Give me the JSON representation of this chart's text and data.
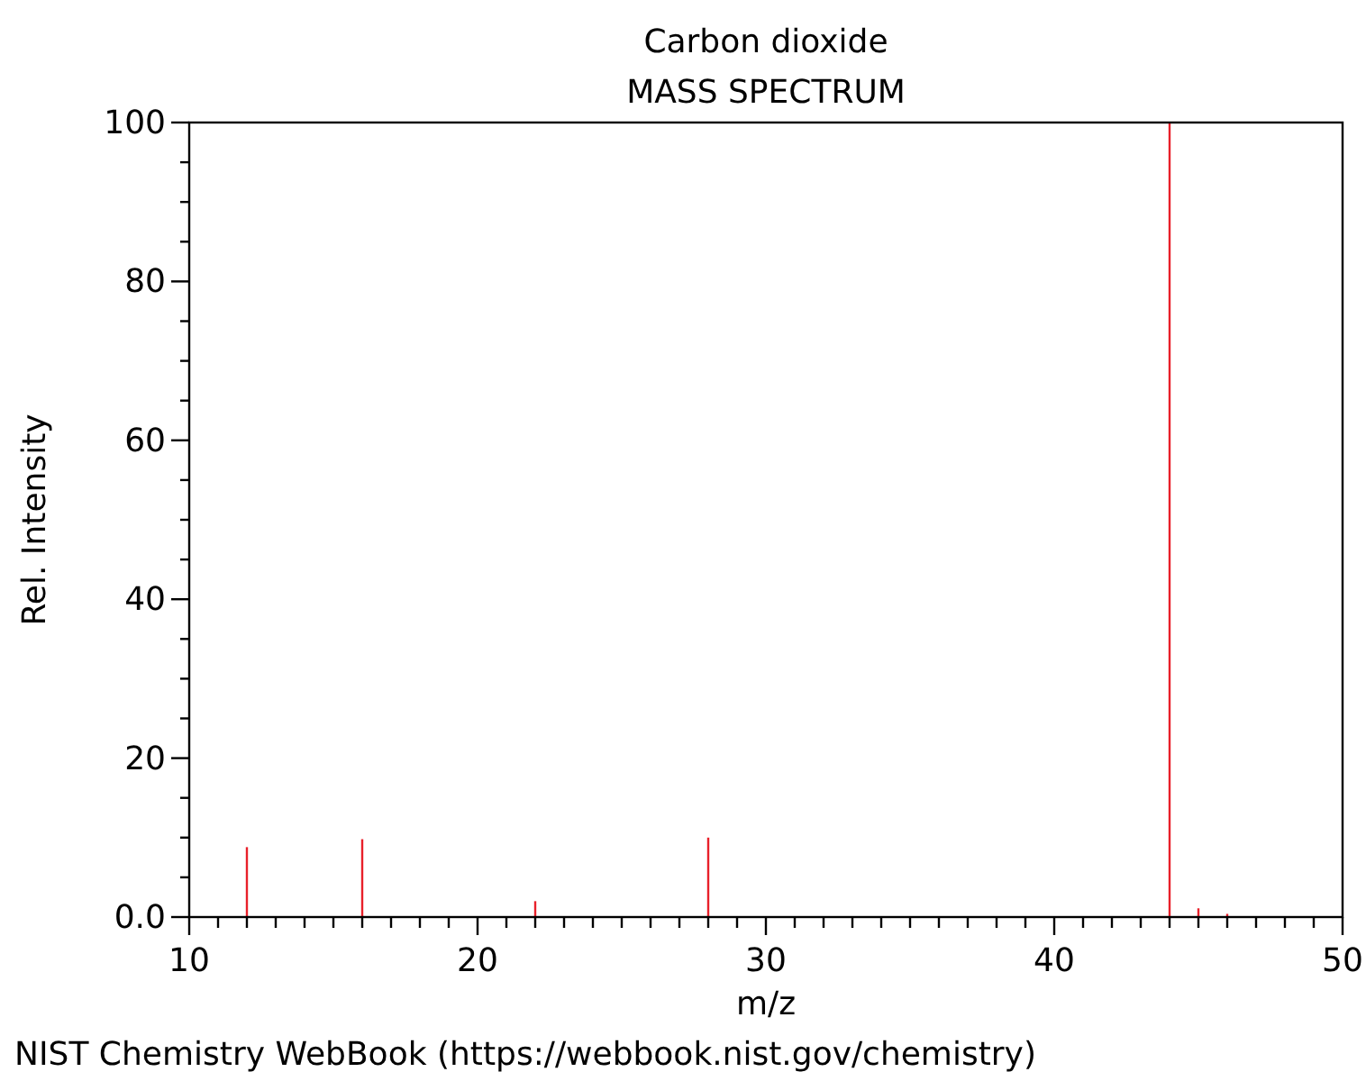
{
  "chart_data": {
    "type": "bar",
    "title": "Carbon dioxide",
    "subtitle": "MASS SPECTRUM",
    "xlabel": "m/z",
    "ylabel": "Rel. Intensity",
    "annotations": [
      "NIST Chemistry WebBook (https://webbook.nist.gov/chemistry)"
    ],
    "x": [
      12,
      16,
      22,
      28,
      44,
      45,
      46
    ],
    "values": [
      8.8,
      9.8,
      2.0,
      10.0,
      100,
      1.1,
      0.4
    ],
    "color": "#e8202a",
    "xlim": [
      10,
      50
    ],
    "xticks": [
      10,
      {
        "value": 11,
        "label": null
      },
      {
        "value": 12,
        "label": null
      },
      {
        "value": 13,
        "label": null
      },
      {
        "value": 14,
        "label": null
      },
      {
        "value": 15,
        "label": null
      },
      {
        "value": 16,
        "label": null
      },
      {
        "value": 17,
        "label": null
      },
      {
        "value": 18,
        "label": null
      },
      {
        "value": 19,
        "label": null
      },
      20,
      {
        "value": 21,
        "label": null
      },
      {
        "value": 22,
        "label": null
      },
      {
        "value": 23,
        "label": null
      },
      {
        "value": 24,
        "label": null
      },
      {
        "value": 25,
        "label": null
      },
      {
        "value": 26,
        "label": null
      },
      {
        "value": 27,
        "label": null
      },
      {
        "value": 28,
        "label": null
      },
      {
        "value": 29,
        "label": null
      },
      30,
      {
        "value": 31,
        "label": null
      },
      {
        "value": 32,
        "label": null
      },
      {
        "value": 33,
        "label": null
      },
      {
        "value": 34,
        "label": null
      },
      {
        "value": 35,
        "label": null
      },
      {
        "value": 36,
        "label": null
      },
      {
        "value": 37,
        "label": null
      },
      {
        "value": 38,
        "label": null
      },
      {
        "value": 39,
        "label": null
      },
      40,
      {
        "value": 41,
        "label": null
      },
      {
        "value": 42,
        "label": null
      },
      {
        "value": 43,
        "label": null
      },
      {
        "value": 44,
        "label": null
      },
      {
        "value": 45,
        "label": null
      },
      {
        "value": 46,
        "label": null
      },
      {
        "value": 47,
        "label": null
      },
      {
        "value": 48,
        "label": null
      },
      {
        "value": 49,
        "label": null
      },
      50
    ],
    "ylim": [
      0,
      100
    ],
    "yticks": [
      {
        "value": 0,
        "label": "0.0"
      },
      {
        "value": 5,
        "label": null
      },
      {
        "value": 10,
        "label": null
      },
      {
        "value": 15,
        "label": null
      },
      20,
      {
        "value": 25,
        "label": null
      },
      {
        "value": 30,
        "label": null
      },
      {
        "value": 35,
        "label": null
      },
      40,
      {
        "value": 45,
        "label": null
      },
      {
        "value": 50,
        "label": null
      },
      {
        "value": 55,
        "label": null
      },
      60,
      {
        "value": 65,
        "label": null
      },
      {
        "value": 70,
        "label": null
      },
      {
        "value": 75,
        "label": null
      },
      80,
      {
        "value": 85,
        "label": null
      },
      {
        "value": 90,
        "label": null
      },
      {
        "value": 95,
        "label": null
      },
      100
    ]
  }
}
